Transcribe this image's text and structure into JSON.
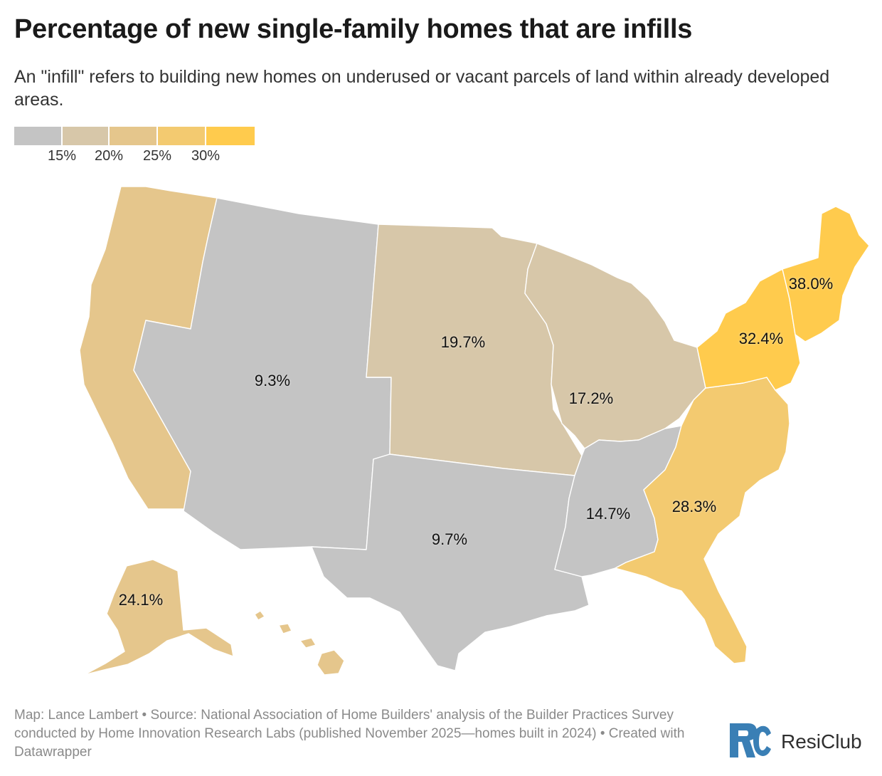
{
  "title": "Percentage of new single-family homes that are infills",
  "subtitle": "An \"infill\" refers to building new homes on underused or vacant parcels of land within already developed areas.",
  "legend": {
    "colors": [
      "#c4c4c4",
      "#d7c7a9",
      "#e5c68c",
      "#f3ca70",
      "#ffcb4d"
    ],
    "ticks": [
      "15%",
      "20%",
      "25%",
      "30%"
    ]
  },
  "colors": {
    "bin_lt15": "#c4c4c4",
    "bin_15_20": "#d7c7a9",
    "bin_20_25": "#e5c68c",
    "bin_25_30": "#f3ca70",
    "bin_gt30": "#ffcb4d"
  },
  "regions": [
    {
      "name": "Pacific",
      "value": "24.1%"
    },
    {
      "name": "Mountain",
      "value": "9.3%"
    },
    {
      "name": "West North Central",
      "value": "19.7%"
    },
    {
      "name": "East North Central",
      "value": "17.2%"
    },
    {
      "name": "West South Central",
      "value": "9.7%"
    },
    {
      "name": "East South Central",
      "value": "14.7%"
    },
    {
      "name": "South Atlantic",
      "value": "28.3%"
    },
    {
      "name": "Middle Atlantic",
      "value": "32.4%"
    },
    {
      "name": "New England",
      "value": "38.0%"
    }
  ],
  "footer": "Map: Lance Lambert • Source: National Association of Home Builders' analysis of the Builder Practices Survey conducted by Home Innovation Research Labs (published November 2025—homes built in 2024) • Created with Datawrapper",
  "logo": {
    "text": "ResiClub",
    "accent": "#3a7fb5"
  }
}
